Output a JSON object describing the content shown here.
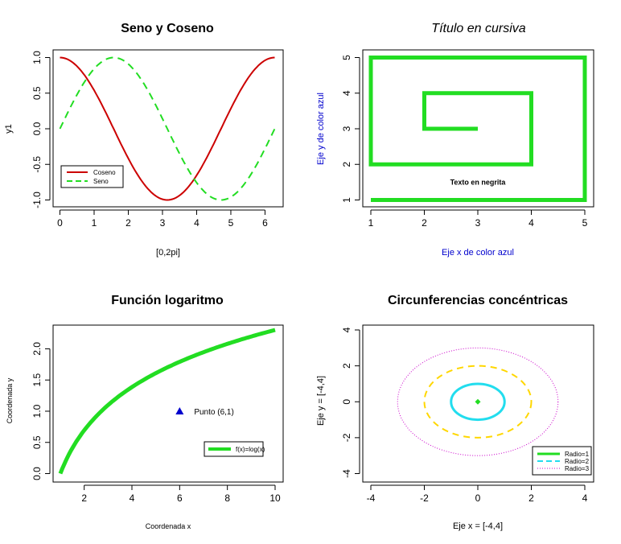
{
  "colors": {
    "red": "#CC0000",
    "green": "#22DD22",
    "cyan": "#22DDEE",
    "yellow": "#FFD700",
    "magenta": "#CC00CC",
    "blue": "#0000CD"
  },
  "chart_data": [
    {
      "type": "line",
      "title": "Seno y Coseno",
      "xlabel": "[0,2pi]",
      "ylabel": "y1",
      "xlim": [
        0,
        6.2832
      ],
      "ylim": [
        -1,
        1
      ],
      "xticks": [
        "0",
        "1",
        "2",
        "3",
        "4",
        "5",
        "6"
      ],
      "yticks": [
        "-1.0",
        "-0.5",
        "0.0",
        "0.5",
        "1.0"
      ],
      "series": [
        {
          "name": "Coseno",
          "function": "cos(x)",
          "color": "red",
          "style": "solid"
        },
        {
          "name": "Seno",
          "function": "sin(x)",
          "color": "green",
          "style": "dashed"
        }
      ],
      "legend": "bottom-left"
    },
    {
      "type": "line",
      "title": "Título en cursiva",
      "xlabel": "Eje x de color azul",
      "ylabel": "Eje y de color azul",
      "xlim": [
        1,
        5
      ],
      "ylim": [
        1,
        5
      ],
      "xticks": [
        "1",
        "2",
        "3",
        "4",
        "5"
      ],
      "yticks": [
        "1",
        "2",
        "3",
        "4",
        "5"
      ],
      "series": [
        {
          "x": [
            1,
            5,
            5,
            1,
            1,
            4,
            4,
            2,
            2,
            3
          ],
          "y": [
            1,
            1,
            5,
            5,
            2,
            2,
            4,
            4,
            3,
            3
          ],
          "color": "green"
        }
      ],
      "annotation": {
        "text": "Texto en negrita",
        "x": 3,
        "y": 1.5
      }
    },
    {
      "type": "line",
      "title": "Función logaritmo",
      "xlabel": "Coordenada x",
      "ylabel": "Coordenada y",
      "xlim": [
        1,
        10
      ],
      "ylim": [
        0,
        2.3026
      ],
      "xticks": [
        "2",
        "4",
        "6",
        "8",
        "10"
      ],
      "yticks": [
        "0.0",
        "0.5",
        "1.0",
        "1.5",
        "2.0"
      ],
      "series": [
        {
          "name": "f(x)=log(x)",
          "function": "log(x)",
          "color": "green"
        }
      ],
      "point": {
        "x": 6,
        "y": 1,
        "label": "Punto (6,1)",
        "color": "blue"
      },
      "legend": "bottom-right"
    },
    {
      "type": "line",
      "title": "Circunferencias concéntricas",
      "xlabel": "Eje x = [-4,4]",
      "ylabel": "Eje y = [-4,4]",
      "xlim": [
        -4,
        4
      ],
      "ylim": [
        -4,
        4
      ],
      "xticks": [
        "-4",
        "-2",
        "0",
        "2",
        "4"
      ],
      "yticks": [
        "-4",
        "-2",
        "0",
        "2",
        "4"
      ],
      "series": [
        {
          "name": "Radio=1",
          "radius": 1,
          "color": "cyan",
          "style": "solid"
        },
        {
          "name": "Radio=2",
          "radius": 2,
          "color": "yellow",
          "style": "dashed"
        },
        {
          "name": "Radio=3",
          "radius": 3,
          "color": "magenta",
          "style": "dotted"
        }
      ],
      "center_point": {
        "x": 0,
        "y": 0,
        "color": "green"
      },
      "legend": "bottom-right"
    }
  ]
}
